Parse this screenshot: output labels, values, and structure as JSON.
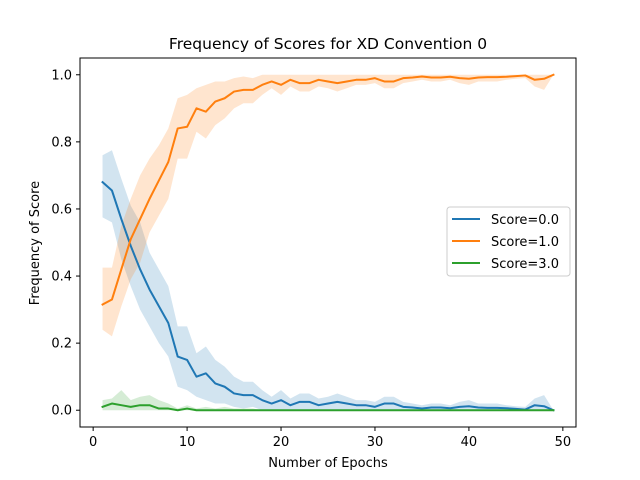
{
  "chart_data": {
    "type": "line",
    "title": "Frequency of Scores for XD Convention 0",
    "xlabel": "Number of Epochs",
    "ylabel": "Frequency of Score",
    "xlim": [
      -1.4,
      51.4
    ],
    "ylim": [
      -0.05,
      1.05
    ],
    "xticks": [
      0,
      10,
      20,
      30,
      40,
      50
    ],
    "yticks": [
      0.0,
      0.2,
      0.4,
      0.6,
      0.8,
      1.0
    ],
    "grid": false,
    "legend_position": "center-right",
    "x": [
      1,
      2,
      3,
      4,
      5,
      6,
      7,
      8,
      9,
      10,
      11,
      12,
      13,
      14,
      15,
      16,
      17,
      18,
      19,
      20,
      21,
      22,
      23,
      24,
      25,
      26,
      27,
      28,
      29,
      30,
      31,
      32,
      33,
      34,
      35,
      36,
      37,
      38,
      39,
      40,
      41,
      42,
      43,
      44,
      45,
      46,
      47,
      48,
      49
    ],
    "series": [
      {
        "name": "Score=0.0",
        "color": "#1f77b4",
        "values": [
          0.68,
          0.655,
          0.57,
          0.49,
          0.42,
          0.36,
          0.31,
          0.26,
          0.16,
          0.15,
          0.1,
          0.11,
          0.08,
          0.07,
          0.05,
          0.045,
          0.045,
          0.03,
          0.02,
          0.03,
          0.015,
          0.025,
          0.025,
          0.015,
          0.02,
          0.025,
          0.02,
          0.015,
          0.015,
          0.01,
          0.02,
          0.02,
          0.01,
          0.008,
          0.005,
          0.008,
          0.008,
          0.006,
          0.01,
          0.012,
          0.008,
          0.007,
          0.007,
          0.006,
          0.004,
          0.002,
          0.015,
          0.012,
          0.0
        ],
        "lower": [
          0.575,
          0.56,
          0.45,
          0.37,
          0.3,
          0.25,
          0.2,
          0.16,
          0.07,
          0.06,
          0.04,
          0.03,
          0.02,
          0.02,
          0.01,
          0.005,
          0.01,
          0.0,
          0.0,
          0.0,
          0.0,
          0.0,
          0.0,
          0.0,
          0.0,
          0.0,
          0.0,
          0.0,
          0.0,
          0.0,
          0.0,
          0.0,
          0.0,
          0.0,
          0.0,
          0.0,
          0.0,
          0.0,
          0.0,
          0.0,
          0.0,
          0.0,
          0.0,
          0.0,
          0.0,
          0.0,
          0.0,
          0.0,
          0.0
        ],
        "upper": [
          0.76,
          0.775,
          0.69,
          0.61,
          0.56,
          0.47,
          0.42,
          0.37,
          0.25,
          0.25,
          0.17,
          0.19,
          0.15,
          0.13,
          0.1,
          0.085,
          0.085,
          0.06,
          0.04,
          0.06,
          0.035,
          0.05,
          0.05,
          0.035,
          0.04,
          0.05,
          0.04,
          0.03,
          0.03,
          0.025,
          0.04,
          0.04,
          0.025,
          0.02,
          0.015,
          0.02,
          0.02,
          0.015,
          0.025,
          0.03,
          0.02,
          0.02,
          0.02,
          0.015,
          0.012,
          0.01,
          0.035,
          0.045,
          0.0
        ]
      },
      {
        "name": "Score=1.0",
        "color": "#ff7f0e",
        "values": [
          0.315,
          0.33,
          0.42,
          0.51,
          0.57,
          0.63,
          0.685,
          0.74,
          0.84,
          0.845,
          0.9,
          0.89,
          0.92,
          0.93,
          0.95,
          0.955,
          0.955,
          0.97,
          0.98,
          0.97,
          0.985,
          0.975,
          0.975,
          0.985,
          0.98,
          0.975,
          0.98,
          0.985,
          0.985,
          0.99,
          0.98,
          0.98,
          0.99,
          0.992,
          0.995,
          0.992,
          0.992,
          0.994,
          0.99,
          0.988,
          0.992,
          0.993,
          0.993,
          0.994,
          0.996,
          0.998,
          0.985,
          0.988,
          1.0
        ],
        "lower": [
          0.24,
          0.22,
          0.31,
          0.39,
          0.44,
          0.53,
          0.58,
          0.63,
          0.75,
          0.75,
          0.83,
          0.81,
          0.85,
          0.87,
          0.9,
          0.915,
          0.915,
          0.94,
          0.96,
          0.94,
          0.965,
          0.95,
          0.95,
          0.965,
          0.96,
          0.95,
          0.96,
          0.97,
          0.97,
          0.975,
          0.96,
          0.96,
          0.975,
          0.98,
          0.985,
          0.98,
          0.98,
          0.985,
          0.975,
          0.97,
          0.98,
          0.98,
          0.98,
          0.985,
          0.988,
          0.99,
          0.965,
          0.955,
          1.0
        ],
        "upper": [
          0.425,
          0.425,
          0.55,
          0.63,
          0.7,
          0.75,
          0.79,
          0.84,
          0.93,
          0.94,
          0.96,
          0.97,
          0.98,
          0.98,
          0.99,
          0.995,
          0.99,
          1.0,
          1.0,
          1.0,
          1.0,
          1.0,
          1.0,
          1.0,
          1.0,
          1.0,
          1.0,
          1.0,
          1.0,
          1.0,
          1.0,
          1.0,
          1.0,
          1.0,
          1.0,
          1.0,
          1.0,
          1.0,
          1.0,
          1.0,
          1.0,
          1.0,
          1.0,
          1.0,
          1.0,
          1.0,
          1.0,
          1.0,
          1.0
        ]
      },
      {
        "name": "Score=3.0",
        "color": "#2ca02c",
        "values": [
          0.01,
          0.02,
          0.015,
          0.01,
          0.015,
          0.015,
          0.005,
          0.005,
          0.0,
          0.005,
          0.0,
          0.0,
          0.0,
          0.0,
          0.0,
          0.0,
          0.0,
          0.0,
          0.0,
          0.0,
          0.0,
          0.0,
          0.0,
          0.0,
          0.0,
          0.0,
          0.0,
          0.0,
          0.0,
          0.0,
          0.0,
          0.0,
          0.0,
          0.0,
          0.0,
          0.0,
          0.0,
          0.0,
          0.0,
          0.0,
          0.0,
          0.0,
          0.0,
          0.0,
          0.0,
          0.0,
          0.0,
          0.0,
          0.0
        ],
        "lower": [
          0.0,
          0.0,
          0.0,
          0.0,
          0.0,
          0.0,
          0.0,
          0.0,
          0.0,
          0.0,
          0.0,
          0.0,
          0.0,
          0.0,
          0.0,
          0.0,
          0.0,
          0.0,
          0.0,
          0.0,
          0.0,
          0.0,
          0.0,
          0.0,
          0.0,
          0.0,
          0.0,
          0.0,
          0.0,
          0.0,
          0.0,
          0.0,
          0.0,
          0.0,
          0.0,
          0.0,
          0.0,
          0.0,
          0.0,
          0.0,
          0.0,
          0.0,
          0.0,
          0.0,
          0.0,
          0.0,
          0.0,
          0.0,
          0.0
        ],
        "upper": [
          0.03,
          0.035,
          0.06,
          0.03,
          0.04,
          0.045,
          0.03,
          0.02,
          0.005,
          0.015,
          0.005,
          0.01,
          0.005,
          0.01,
          0.005,
          0.005,
          0.005,
          0.0,
          0.0,
          0.0,
          0.0,
          0.0,
          0.0,
          0.0,
          0.0,
          0.0,
          0.0,
          0.0,
          0.0,
          0.0,
          0.0,
          0.0,
          0.0,
          0.0,
          0.0,
          0.0,
          0.0,
          0.0,
          0.0,
          0.0,
          0.0,
          0.0,
          0.0,
          0.0,
          0.0,
          0.0,
          0.0,
          0.0,
          0.0
        ]
      }
    ]
  }
}
